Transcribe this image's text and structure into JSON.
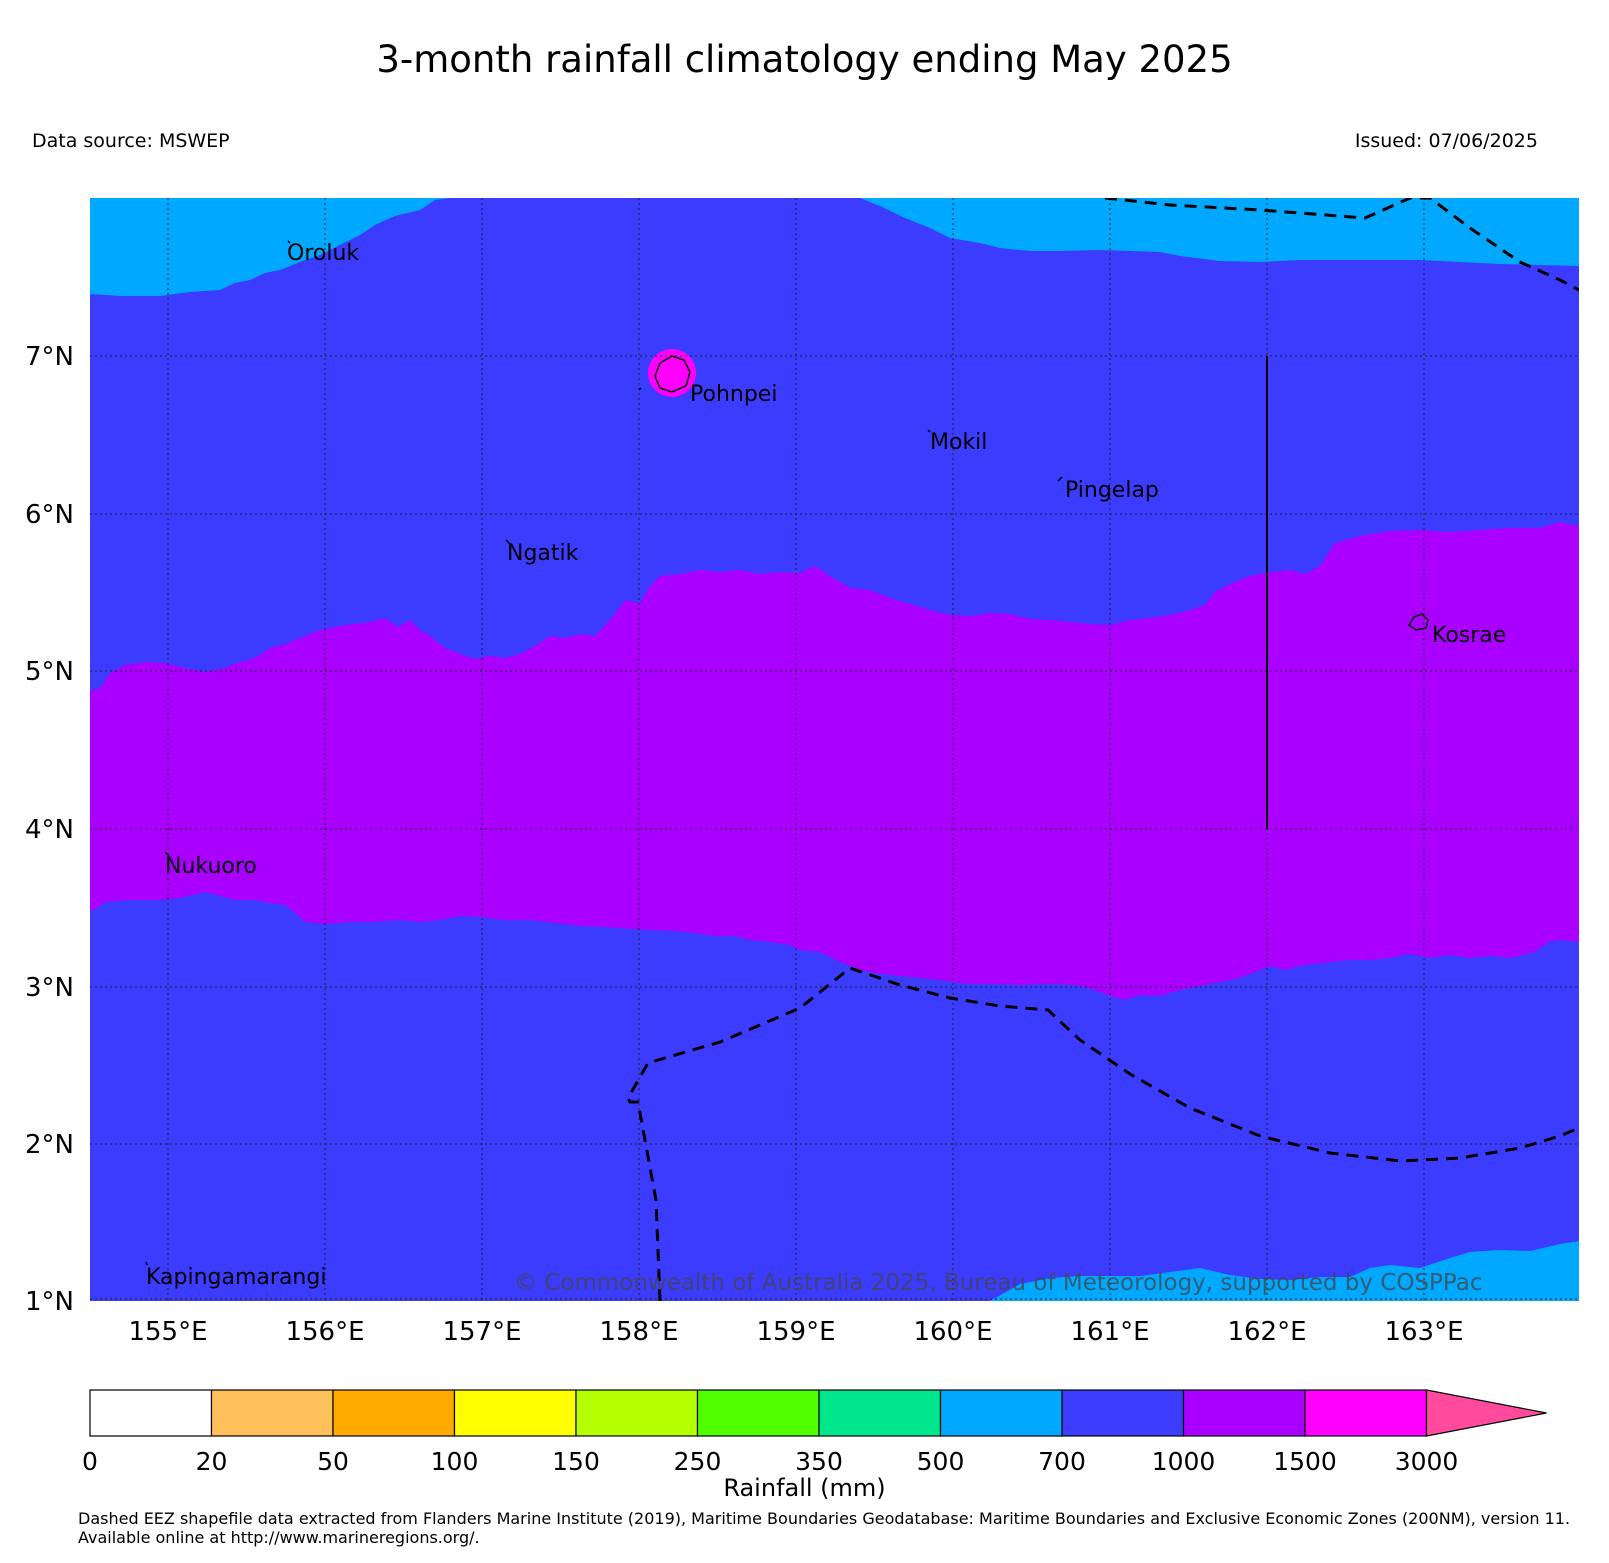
{
  "title": "3-month rainfall climatology ending May 2025",
  "data_source": "Data source: MSWEP",
  "issued": "Issued: 07/06/2025",
  "copyright": "© Commonwealth of Australia 2025, Bureau of Meteorology, supported by COSPPac",
  "lon_labels": [
    "155°E",
    "156°E",
    "157°E",
    "158°E",
    "159°E",
    "160°E",
    "161°E",
    "162°E",
    "163°E"
  ],
  "lat_labels": [
    "7°N",
    "6°N",
    "5°N",
    "4°N",
    "3°N",
    "2°N",
    "1°N"
  ],
  "places": [
    "Oroluk",
    "Pohnpei",
    "Mokil",
    "Pingelap",
    "Ngatik",
    "Kosrae",
    "Nukuoro",
    "Kapingamarangi"
  ],
  "colorbar": {
    "title": "Rainfall (mm)",
    "tick_labels": [
      "0",
      "20",
      "50",
      "100",
      "150",
      "250",
      "350",
      "500",
      "700",
      "1000",
      "1500",
      "3000"
    ],
    "colors": [
      "#ffffff",
      "#ffbf5a",
      "#ffaa00",
      "#ffff00",
      "#b4ff00",
      "#50ff00",
      "#00e68c",
      "#00a8ff",
      "#3c3cff",
      "#aa00ff",
      "#ff00ff",
      "#ff4a9e"
    ]
  },
  "footnote": "Dashed EEZ shapefile data extracted from Flanders Marine Institute (2019), Maritime Boundaries Geodatabase: Maritime Boundaries and Exclusive Economic Zones (200NM), version 11. Available online at http://www.marineregions.org/."
}
